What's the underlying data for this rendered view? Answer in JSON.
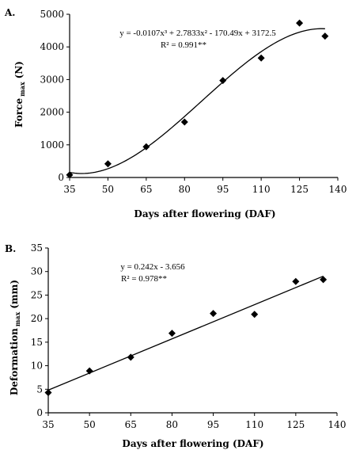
{
  "chart_data": [
    {
      "type": "scatter",
      "panel_label": "A.",
      "xlabel": "Days after flowering (DAF)",
      "ylabel": "Force",
      "ylabel_sub": "max",
      "ylabel_unit": "(N)",
      "xlim": [
        35,
        140
      ],
      "ylim": [
        0,
        5000
      ],
      "xticks": [
        35,
        50,
        65,
        80,
        95,
        110,
        125,
        140
      ],
      "yticks": [
        0,
        1000,
        2000,
        3000,
        4000,
        5000
      ],
      "points": [
        {
          "x": 35,
          "y": 80
        },
        {
          "x": 50,
          "y": 420
        },
        {
          "x": 65,
          "y": 940
        },
        {
          "x": 80,
          "y": 1700
        },
        {
          "x": 95,
          "y": 2970
        },
        {
          "x": 110,
          "y": 3660
        },
        {
          "x": 125,
          "y": 4730
        },
        {
          "x": 135,
          "y": 4330
        }
      ],
      "fit": {
        "type": "cubic",
        "coefficients": [
          -0.0107,
          2.7833,
          -170.49,
          3172.5
        ],
        "x_range": [
          35,
          135
        ]
      },
      "equation": "y = -0.0107x³ + 2.7833x² - 170.49x + 3172.5",
      "r2": "R² = 0.991**",
      "grid": false,
      "marker": "diamond"
    },
    {
      "type": "scatter",
      "panel_label": "B.",
      "xlabel": "Days after flowering (DAF)",
      "ylabel": "Deformation",
      "ylabel_sub": "max",
      "ylabel_unit": "(mm)",
      "xlim": [
        35,
        140
      ],
      "ylim": [
        0,
        35
      ],
      "xticks": [
        35,
        50,
        65,
        80,
        95,
        110,
        125,
        140
      ],
      "yticks": [
        0,
        5,
        10,
        15,
        20,
        25,
        30,
        35
      ],
      "points": [
        {
          "x": 35,
          "y": 4.3
        },
        {
          "x": 50,
          "y": 8.9
        },
        {
          "x": 65,
          "y": 11.8
        },
        {
          "x": 80,
          "y": 16.9
        },
        {
          "x": 95,
          "y": 21.1
        },
        {
          "x": 110,
          "y": 20.9
        },
        {
          "x": 125,
          "y": 27.9
        },
        {
          "x": 135,
          "y": 28.3
        }
      ],
      "fit": {
        "type": "linear",
        "coefficients": [
          0.242,
          -3.656
        ],
        "x_range": [
          35,
          135
        ]
      },
      "equation": "y = 0.242x - 3.656",
      "r2": "R² = 0.978**",
      "grid": false,
      "marker": "diamond"
    }
  ]
}
